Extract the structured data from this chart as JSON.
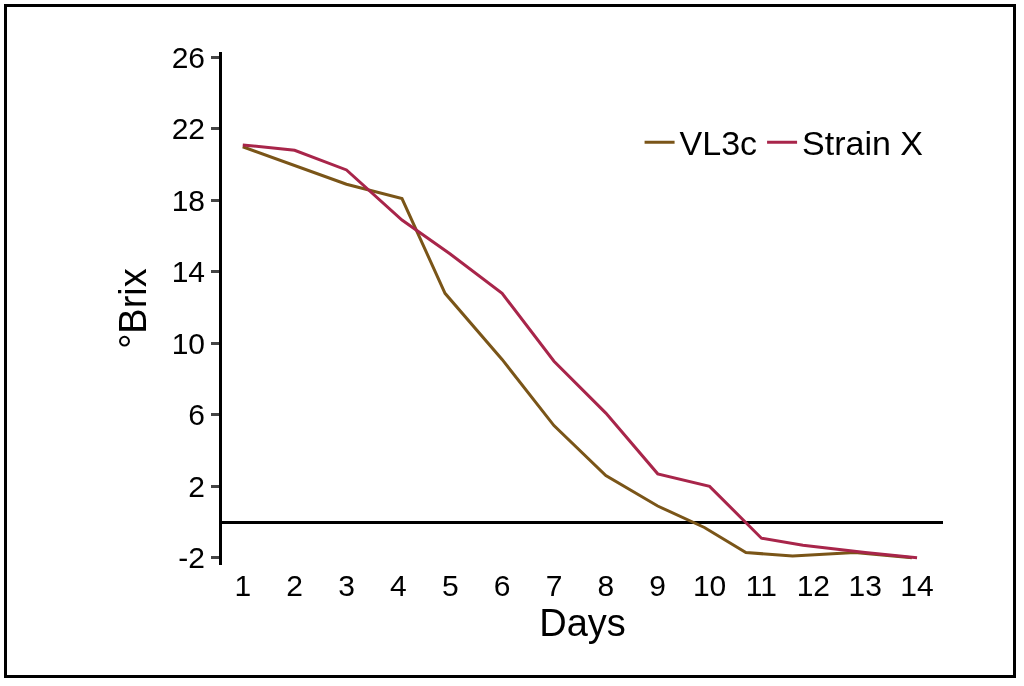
{
  "chart_data": {
    "type": "line",
    "xlabel": "Days",
    "ylabel": "°Brix",
    "series": [
      {
        "name": "VL3c",
        "color": "#7a5518",
        "x": [
          1,
          3,
          4.07,
          4.9,
          6,
          7,
          8,
          9,
          9.9,
          10.7,
          11.6,
          12.8,
          13.9
        ],
        "values": [
          21,
          18.9,
          18.1,
          12.8,
          9.1,
          5.4,
          2.6,
          0.9,
          -0.3,
          -1.7,
          -1.9,
          -1.7,
          -2
        ]
      },
      {
        "name": "Strain X",
        "color": "#a8254a",
        "x": [
          1,
          2,
          3,
          4.07,
          5,
          6,
          7,
          8,
          9,
          10,
          11,
          11.8,
          13,
          14
        ],
        "values": [
          21.1,
          20.8,
          19.7,
          16.9,
          15,
          12.8,
          9,
          6.1,
          2.7,
          2,
          -0.9,
          -1.3,
          -1.7,
          -2
        ]
      }
    ],
    "xlim": [
      0.6,
      14.5
    ],
    "xticks": [
      1,
      2,
      3,
      4,
      5,
      6,
      7,
      8,
      9,
      10,
      11,
      12,
      13,
      14
    ],
    "ylim": [
      -2.4,
      26.3
    ],
    "yticks": [
      -2,
      2,
      6,
      10,
      14,
      18,
      22,
      26
    ],
    "grid": false,
    "legend": "top right",
    "marker": "none",
    "line_style": "solid"
  }
}
